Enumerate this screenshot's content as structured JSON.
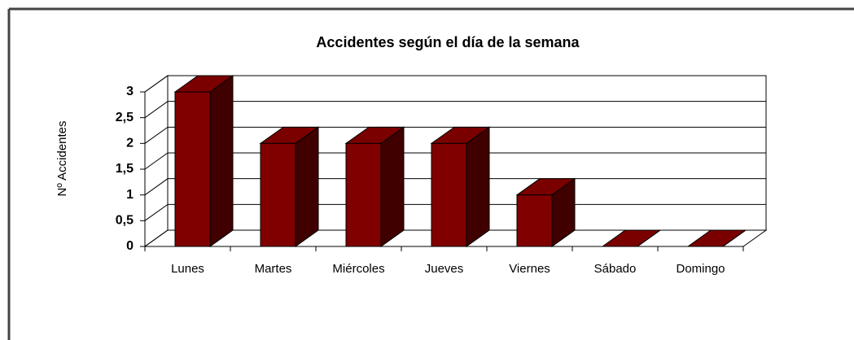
{
  "chart_data": {
    "type": "bar3d",
    "title": "Accidentes según el día de la semana",
    "y_label": "Nº Accidentes",
    "categories": [
      "Lunes",
      "Martes",
      "Miércoles",
      "Jueves",
      "Viernes",
      "Sábado",
      "Domingo"
    ],
    "values": [
      3,
      2,
      2,
      2,
      1,
      0,
      0
    ],
    "color": "#800000",
    "ylim": [
      0,
      3
    ],
    "yticks": [
      0,
      {
        "value": 0.5,
        "label": "0,5"
      },
      1,
      {
        "value": 1.5,
        "label": "1,5"
      },
      2,
      {
        "value": 2.5,
        "label": "2,5"
      },
      3
    ],
    "grid": true
  }
}
